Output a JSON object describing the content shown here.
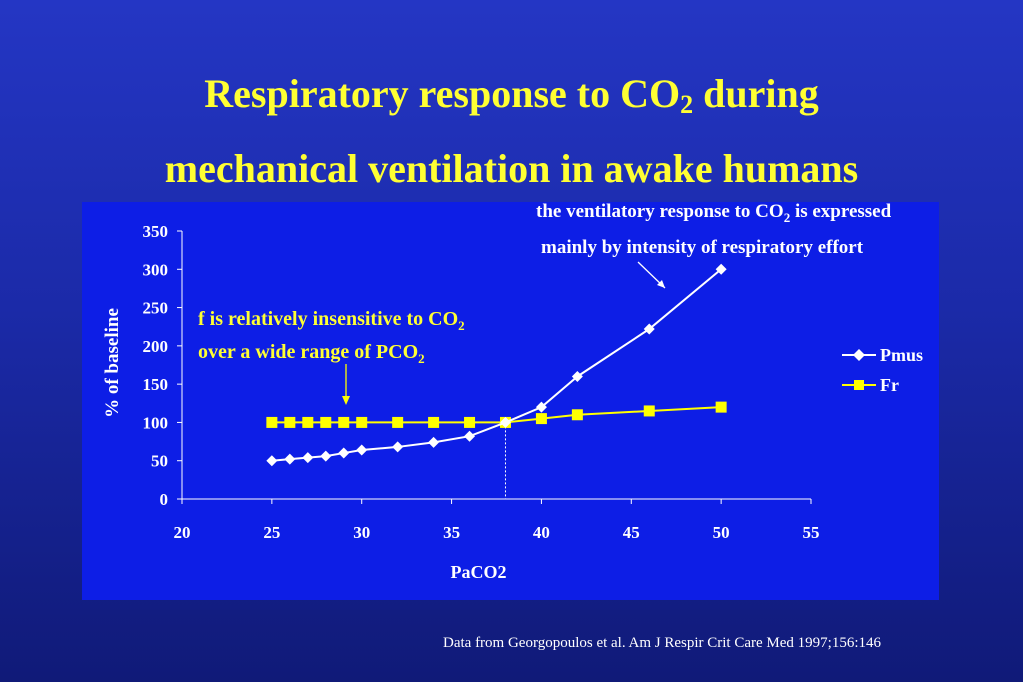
{
  "title": {
    "line1_pre": "Respiratory response to CO",
    "line1_sub": "2",
    "line1_post": " during",
    "line2": "mechanical ventilation in awake humans"
  },
  "annotations": {
    "top_line1_pre": "the ventilatory response to CO",
    "top_line1_sub": "2",
    "top_line1_post": " is expressed",
    "top_line2": "mainly by intensity of respiratory effort",
    "left_line1_pre": "f is relatively insensitive to CO",
    "left_line1_sub": "2",
    "left_line2_pre": "over a wide range of PCO",
    "left_line2_sub": "2"
  },
  "footer": "Data from Georgopoulos et al. Am J Respir Crit Care Med 1997;156:146",
  "colors": {
    "background": "#1b2aa8",
    "plot_area": "#0d1ee6",
    "title": "#ffff33",
    "pmus": "#ffffff",
    "fr": "#ffff00"
  },
  "chart_data": {
    "type": "line",
    "xlabel": "PaCO2",
    "ylabel": "% of baseline",
    "xlim": [
      20,
      55
    ],
    "ylim": [
      0,
      350
    ],
    "xticks": [
      20,
      25,
      30,
      35,
      40,
      45,
      50,
      55
    ],
    "yticks": [
      0,
      50,
      100,
      150,
      200,
      250,
      300,
      350
    ],
    "grid": false,
    "legend_position": "right",
    "reference_line_x": 38,
    "series": [
      {
        "name": "Pmus",
        "marker": "diamond",
        "color": "#ffffff",
        "x": [
          25,
          26,
          27,
          28,
          29,
          30,
          32,
          34,
          36,
          38,
          40,
          42,
          46,
          50
        ],
        "y": [
          50,
          52,
          54,
          56,
          60,
          64,
          68,
          74,
          82,
          100,
          120,
          160,
          222,
          300
        ]
      },
      {
        "name": "Fr",
        "marker": "square",
        "color": "#ffff00",
        "x": [
          25,
          26,
          27,
          28,
          29,
          30,
          32,
          34,
          36,
          38,
          40,
          42,
          46,
          50
        ],
        "y": [
          100,
          100,
          100,
          100,
          100,
          100,
          100,
          100,
          100,
          100,
          105,
          110,
          115,
          120
        ]
      }
    ]
  }
}
